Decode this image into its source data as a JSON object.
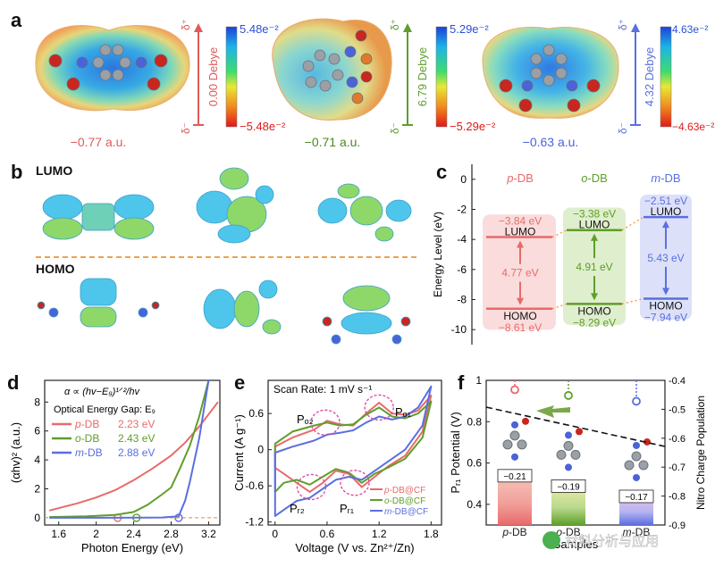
{
  "panels": {
    "a": {
      "letter": "a",
      "maps": [
        {
          "charge": "−0.77 a.u.",
          "dipole": "0.00 Debye",
          "dplus": "δ⁺",
          "dminus": "δ⁻",
          "max": "5.48e⁻²",
          "min": "−5.48e⁻²",
          "color": "#e05a5a"
        },
        {
          "charge": "−0.71 a.u.",
          "dipole": "6.79 Debye",
          "dplus": "δ⁺",
          "dminus": "δ⁻",
          "max": "5.29e⁻²",
          "min": "−5.29e⁻²",
          "color": "#5e9e2a"
        },
        {
          "charge": "−0.63 a.u.",
          "dipole": "4.32 Debye",
          "dplus": "δ⁺",
          "dminus": "δ⁻",
          "max": "4.63e⁻²",
          "min": "−4.63e⁻²",
          "color": "#5a6fe0"
        }
      ]
    },
    "b": {
      "letter": "b",
      "lumo": "LUMO",
      "homo": "HOMO"
    },
    "c": {
      "letter": "c"
    },
    "d": {
      "letter": "d"
    },
    "e": {
      "letter": "e"
    },
    "f": {
      "letter": "f"
    }
  },
  "watermark": "材料分析与应用",
  "chart_data": [
    {
      "panel": "c",
      "type": "bar",
      "ylabel": "Energy Level (eV)",
      "ylim": [
        -11,
        1
      ],
      "yticks": [
        0,
        -2,
        -4,
        -6,
        -8,
        -10
      ],
      "lumo_label": "LUMO",
      "homo_label": "HOMO",
      "series": [
        {
          "name": "p-DB",
          "name_prefix": "p",
          "name_suffix": "-DB",
          "color": "#e86a6a",
          "bg": "#f9d6d6",
          "lumo": -3.84,
          "homo": -8.61,
          "gap": 4.77,
          "lumo_text": "−3.84 eV",
          "homo_text": "−8.61 eV",
          "gap_text": "4.77 eV"
        },
        {
          "name": "o-DB",
          "name_prefix": "o",
          "name_suffix": "-DB",
          "color": "#5e9e2a",
          "bg": "#d9ebc4",
          "lumo": -3.38,
          "homo": -8.29,
          "gap": 4.91,
          "lumo_text": "−3.38 eV",
          "homo_text": "−8.29 eV",
          "gap_text": "4.91 eV"
        },
        {
          "name": "m-DB",
          "name_prefix": "m",
          "name_suffix": "-DB",
          "color": "#5a6fe0",
          "bg": "#d6dcf8",
          "lumo": -2.51,
          "homo": -7.94,
          "gap": 5.43,
          "lumo_text": "−2.51 eV",
          "homo_text": "−7.94 eV",
          "gap_text": "5.43 eV"
        }
      ]
    },
    {
      "panel": "d",
      "type": "line",
      "xlabel": "Photon Energy (eV)",
      "ylabel": "(αhv)² (a.u.)",
      "xlim": [
        1.45,
        3.32
      ],
      "ylim": [
        -0.5,
        9.5
      ],
      "xticks": [
        1.6,
        2.0,
        2.4,
        2.8,
        3.2
      ],
      "yticks": [
        0,
        2,
        4,
        6,
        8
      ],
      "annotation_1": "α ∝ (hv−E₉)¹ᐟ²/hv",
      "annotation_2": "Optical Energy Gap: E₉",
      "series": [
        {
          "name": "p-DB",
          "name_prefix": "p",
          "name_suffix": "-DB",
          "value_text": "2.23 eV",
          "gap": 2.23,
          "color": "#e86a6a",
          "x": [
            1.5,
            1.8,
            2.0,
            2.2,
            2.4,
            2.6,
            2.8,
            2.95,
            3.1,
            3.3
          ],
          "y": [
            0.5,
            1.0,
            1.4,
            1.9,
            2.6,
            3.4,
            4.3,
            5.2,
            6.3,
            8.0
          ]
        },
        {
          "name": "o-DB",
          "name_prefix": "o",
          "name_suffix": "-DB",
          "value_text": "2.43 eV",
          "gap": 2.43,
          "color": "#5e9e2a",
          "x": [
            1.5,
            1.9,
            2.2,
            2.4,
            2.55,
            2.7,
            2.8,
            2.9,
            3.0,
            3.1,
            3.2
          ],
          "y": [
            0.05,
            0.1,
            0.2,
            0.4,
            0.9,
            1.6,
            2.1,
            3.5,
            5.0,
            7.0,
            9.5
          ]
        },
        {
          "name": "m-DB",
          "name_prefix": "m",
          "name_suffix": "-DB",
          "value_text": "2.88 eV",
          "gap": 2.88,
          "color": "#5a6fe0",
          "x": [
            1.5,
            2.2,
            2.7,
            2.88,
            2.95,
            3.0,
            3.05,
            3.1,
            3.2
          ],
          "y": [
            0.0,
            0.0,
            0.02,
            0.1,
            1.2,
            2.5,
            4.0,
            5.5,
            9.5
          ]
        }
      ]
    },
    {
      "panel": "e",
      "type": "line",
      "xlabel": "Voltage (V vs. Zn²⁺/Zn)",
      "ylabel": "Current (A g⁻¹)",
      "xlim": [
        -0.08,
        1.92
      ],
      "ylim": [
        -1.25,
        1.15
      ],
      "xticks": [
        0.0,
        0.6,
        1.2,
        1.8
      ],
      "yticks": [
        -1.2,
        -0.6,
        0.0,
        0.6
      ],
      "annotation": "Scan Rate: 1 mV s⁻¹",
      "peaks": [
        "Pₒ₂",
        "Pₒ₁",
        "Pᵣ₂",
        "Pᵣ₁"
      ],
      "series": [
        {
          "name": "p-DB@CF",
          "name_prefix": "p",
          "name_suffix": "-DB@CF",
          "color": "#e86a6a",
          "x": [
            0.0,
            0.2,
            0.45,
            0.6,
            0.75,
            0.9,
            1.05,
            1.2,
            1.35,
            1.5,
            1.65,
            1.8,
            1.7,
            1.5,
            1.3,
            1.15,
            1.0,
            0.85,
            0.7,
            0.55,
            0.4,
            0.25,
            0.1,
            0.0
          ],
          "y": [
            0.05,
            0.2,
            0.33,
            0.48,
            0.42,
            0.4,
            0.6,
            0.78,
            0.6,
            0.58,
            0.65,
            0.9,
            0.3,
            -0.1,
            -0.28,
            -0.45,
            -0.62,
            -0.4,
            -0.35,
            -0.55,
            -0.7,
            -0.55,
            -0.4,
            -0.3
          ]
        },
        {
          "name": "o-DB@CF",
          "name_prefix": "o",
          "name_suffix": "-DB@CF",
          "color": "#5e9e2a",
          "x": [
            0.0,
            0.2,
            0.45,
            0.6,
            0.75,
            0.9,
            1.05,
            1.2,
            1.35,
            1.5,
            1.65,
            1.8,
            1.7,
            1.5,
            1.3,
            1.15,
            1.0,
            0.85,
            0.7,
            0.55,
            0.4,
            0.25,
            0.1,
            0.0
          ],
          "y": [
            0.1,
            0.3,
            0.4,
            0.45,
            0.4,
            0.42,
            0.58,
            0.7,
            0.55,
            0.52,
            0.6,
            0.8,
            0.2,
            -0.15,
            -0.3,
            -0.4,
            -0.55,
            -0.38,
            -0.32,
            -0.45,
            -0.58,
            -0.5,
            -0.55,
            -0.7
          ]
        },
        {
          "name": "m-DB@CF",
          "name_prefix": "m",
          "name_suffix": "-DB@CF",
          "color": "#5a6fe0",
          "x": [
            0.0,
            0.2,
            0.45,
            0.6,
            0.75,
            0.9,
            1.05,
            1.2,
            1.35,
            1.5,
            1.65,
            1.8,
            1.7,
            1.5,
            1.3,
            1.15,
            1.0,
            0.85,
            0.7,
            0.55,
            0.4,
            0.25,
            0.1,
            0.0
          ],
          "y": [
            -0.05,
            0.05,
            0.15,
            0.25,
            0.28,
            0.32,
            0.45,
            0.55,
            0.5,
            0.55,
            0.7,
            1.05,
            0.4,
            0.0,
            -0.2,
            -0.35,
            -0.5,
            -0.45,
            -0.5,
            -0.65,
            -0.8,
            -0.85,
            -1.0,
            -1.1
          ]
        }
      ]
    },
    {
      "panel": "f",
      "type": "bar",
      "xlabel": "Samples",
      "ylabel": "Pᵣ₁ Potential (V)",
      "y2label": "Nitro Charge Population",
      "ylim": [
        0.3,
        1.0
      ],
      "yticks": [
        0.4,
        0.6,
        0.8,
        1.0
      ],
      "y2lim": [
        -0.4,
        -0.9
      ],
      "y2ticks": [
        -0.4,
        -0.5,
        -0.6,
        -0.7,
        -0.8,
        -0.9
      ],
      "categories": [
        "p-DB",
        "o-DB",
        "m-DB"
      ],
      "category_prefixes": [
        "p",
        "o",
        "m"
      ],
      "category_suffix": "-DB",
      "values": [
        0.56,
        0.51,
        0.46
      ],
      "bar_labels": [
        "−0.21",
        "−0.19",
        "−0.17"
      ],
      "colors": [
        "#e86a6a",
        "#5e9e2a",
        "#5a6fe0"
      ],
      "nitro_population": [
        -0.77,
        -0.71,
        -0.63
      ]
    }
  ]
}
